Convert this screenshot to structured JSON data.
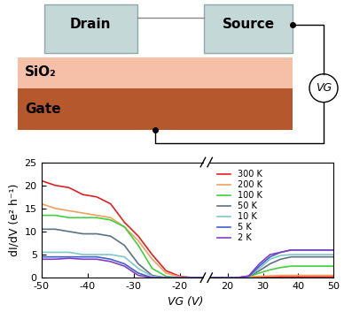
{
  "diagram": {
    "drain": "Drain",
    "source": "Source",
    "oxide": "SiO₂",
    "gate": "Gate",
    "voltage": "VG"
  },
  "chart_data": {
    "type": "line",
    "x_label": "VG (V)",
    "y_label": "dI/dV (e² h⁻¹)",
    "x": [
      -50,
      -47,
      -44,
      -41,
      -38,
      -35,
      -32,
      -29,
      -26,
      -23,
      -20,
      -17,
      17,
      20,
      23,
      26,
      29,
      32,
      35,
      38,
      41,
      44,
      47,
      50
    ],
    "xlim": [
      [
        -50,
        -15
      ],
      [
        15,
        50
      ]
    ],
    "xticks": [
      -50,
      -40,
      -30,
      -20,
      20,
      30,
      40,
      50
    ],
    "ylim": [
      0,
      25
    ],
    "yticks": [
      0,
      5,
      10,
      15,
      20,
      25
    ],
    "legend": "upper left",
    "series": [
      {
        "name": "300 K",
        "color": "#e02020",
        "values": [
          21,
          20,
          19.5,
          18,
          17.5,
          16,
          12,
          9,
          5,
          1.5,
          0.3,
          0,
          0,
          0,
          0,
          0.1,
          0.1,
          0.1,
          0.2,
          0.2,
          0.2,
          0.2,
          0.2,
          0.2
        ]
      },
      {
        "name": "200 K",
        "color": "#f0a060",
        "values": [
          16,
          15,
          14.5,
          14,
          13.5,
          13,
          11,
          8,
          4,
          1,
          0.2,
          0,
          0,
          0,
          0.1,
          0.2,
          0.3,
          0.4,
          0.5,
          0.5,
          0.5,
          0.5,
          0.5,
          0.5
        ]
      },
      {
        "name": "100 K",
        "color": "#40d040",
        "values": [
          13.5,
          13.5,
          13,
          13,
          13,
          12.5,
          11,
          7,
          2,
          0.3,
          0,
          0,
          0,
          0,
          0,
          0.3,
          1,
          1.7,
          2.2,
          2.5,
          2.5,
          2.5,
          2.5,
          2.5
        ]
      },
      {
        "name": "50 K",
        "color": "#607080",
        "values": [
          10.5,
          10.5,
          10,
          9.5,
          9.5,
          9,
          7,
          3,
          0.5,
          0,
          0,
          0,
          0,
          0,
          0,
          0.3,
          1.5,
          3,
          4,
          4.5,
          4.5,
          4.5,
          4.5,
          4.5
        ]
      },
      {
        "name": "10 K",
        "color": "#80c8c8",
        "values": [
          5.5,
          5.5,
          5.5,
          5,
          5,
          5,
          4.5,
          2,
          0.3,
          0,
          0,
          0,
          0,
          0,
          0,
          0.3,
          2,
          4,
          4.8,
          5,
          5,
          5,
          5,
          5
        ]
      },
      {
        "name": "5 K",
        "color": "#4060d0",
        "values": [
          4.5,
          4.5,
          4.5,
          4.5,
          4.5,
          4,
          3,
          1,
          0,
          0,
          0,
          0,
          0,
          0,
          0,
          0.3,
          2.5,
          4.5,
          5.5,
          6,
          6,
          6,
          6,
          6
        ]
      },
      {
        "name": "2 K",
        "color": "#8040c0",
        "values": [
          4,
          4,
          4.2,
          4,
          4,
          3.5,
          2.5,
          0.5,
          0,
          0,
          0,
          0,
          0,
          0,
          0,
          0.4,
          3,
          5,
          5.5,
          6,
          6,
          6,
          6,
          6
        ]
      }
    ]
  }
}
